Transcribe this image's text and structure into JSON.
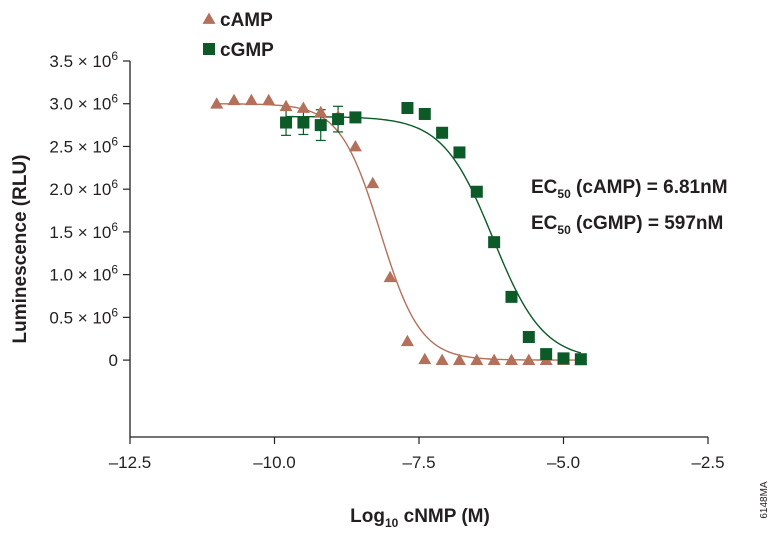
{
  "chart_data": {
    "type": "scatter",
    "xlabel": {
      "main": "Log",
      "sub": "10",
      "rest": " cNMP (M)"
    },
    "ylabel": "Luminescence (RLU)",
    "xlim": [
      -12.5,
      -2.5
    ],
    "ylim": [
      -0.9,
      3.5
    ],
    "x_ticks": [
      -12.5,
      -10.0,
      -7.5,
      -5.0,
      -2.5
    ],
    "x_tick_labels": [
      "–12.5",
      "–10.0",
      "–7.5",
      "–5.0",
      "–2.5"
    ],
    "y_ticks": [
      0,
      0.5,
      1.0,
      1.5,
      2.0,
      2.5,
      3.0,
      3.5
    ],
    "y_tick_labels": [
      {
        "base": "0",
        "exp": ""
      },
      {
        "base": "0.5 × 10",
        "exp": "6"
      },
      {
        "base": "1.0 × 10",
        "exp": "6"
      },
      {
        "base": "1.5 × 10",
        "exp": "6"
      },
      {
        "base": "2.0 × 10",
        "exp": "6"
      },
      {
        "base": "2.5 × 10",
        "exp": "6"
      },
      {
        "base": "3.0 × 10",
        "exp": "6"
      },
      {
        "base": "3.5 × 10",
        "exp": "6"
      }
    ],
    "y_unit_multiplier": 1000000,
    "legend_position": "top-left",
    "series": [
      {
        "name": "cAMP",
        "marker": "triangle",
        "color": "#b5705b",
        "x": [
          -11.0,
          -10.7,
          -10.4,
          -10.1,
          -9.8,
          -9.5,
          -9.2,
          -8.9,
          -8.6,
          -8.3,
          -8.0,
          -7.7,
          -7.4,
          -7.1,
          -6.8,
          -6.5,
          -6.2,
          -5.9,
          -5.6,
          -5.3,
          -5.0,
          -4.7
        ],
        "y": [
          3.0,
          3.04,
          3.04,
          3.04,
          2.97,
          2.95,
          2.9,
          2.85,
          2.5,
          2.07,
          0.97,
          0.22,
          0.01,
          0.0,
          0.0,
          0.0,
          0.0,
          0.0,
          0.0,
          0.0,
          0.0,
          0.0
        ],
        "fit": {
          "top": 3.0,
          "bottom": 0.0,
          "log_ec50": -8.17,
          "hill": 1.25
        }
      },
      {
        "name": "cGMP",
        "marker": "square",
        "color": "#0c5a28",
        "x": [
          -9.8,
          -9.5,
          -9.2,
          -8.9,
          -8.6,
          -7.7,
          -7.4,
          -7.1,
          -6.8,
          -6.5,
          -6.2,
          -5.9,
          -5.6,
          -5.3,
          -5.0,
          -4.7
        ],
        "y": [
          2.78,
          2.78,
          2.75,
          2.82,
          2.84,
          2.95,
          2.88,
          2.66,
          2.43,
          1.97,
          1.38,
          0.74,
          0.27,
          0.07,
          0.02,
          0.01
        ],
        "err": [
          0.15,
          0.14,
          0.18,
          0.15,
          0.05,
          0.0,
          0.0,
          0.0,
          0.0,
          0.0,
          0.0,
          0.0,
          0.0,
          0.0,
          0.0,
          0.0
        ],
        "fit": {
          "top": 2.85,
          "bottom": 0.0,
          "log_ec50": -6.22,
          "hill": 1.0
        }
      }
    ],
    "annotations": [
      {
        "pre": "EC",
        "sub": "50",
        "post": " (cAMP) = 6.81nM"
      },
      {
        "pre": "EC",
        "sub": "50",
        "post": " (cGMP) = 597nM"
      }
    ],
    "figure_code": "6148MA"
  }
}
